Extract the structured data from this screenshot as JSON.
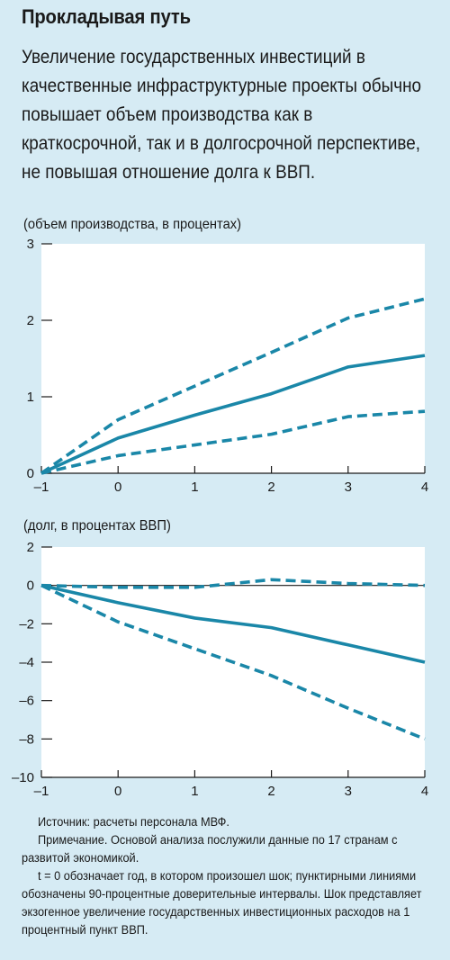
{
  "header": {
    "title": "Прокладывая путь",
    "subtitle": "Увеличение государственных инвестиций в качественные инфраструктурные проекты обычно повышает объем производства как в краткосрочной, так и в долгосрочной перспективе, не повышая отношение долга к ВВП."
  },
  "colors": {
    "background": "#d6ebf4",
    "plot_bg": "#ffffff",
    "series": "#1a87a8",
    "axis": "#1a1a1a"
  },
  "chart_data": [
    {
      "type": "line",
      "title": "",
      "ylabel": "(объем производства, в процентах)",
      "xlabel": "",
      "x": [
        -1,
        0,
        1,
        2,
        3,
        4
      ],
      "xticks": [
        "–1",
        "0",
        "1",
        "2",
        "3",
        "4"
      ],
      "yticks": [
        0,
        1,
        2,
        3
      ],
      "ylim": [
        0,
        3
      ],
      "xlim": [
        -1,
        4
      ],
      "series": [
        {
          "style": "solid",
          "values": [
            0,
            0.46,
            0.76,
            1.04,
            1.39,
            1.54
          ]
        },
        {
          "style": "dashed",
          "values": [
            0,
            0.7,
            1.14,
            1.58,
            2.03,
            2.28
          ]
        },
        {
          "style": "dashed",
          "values": [
            0,
            0.23,
            0.37,
            0.51,
            0.74,
            0.81
          ]
        }
      ]
    },
    {
      "type": "line",
      "title": "",
      "ylabel": "(долг,  в процентах ВВП)",
      "xlabel": "",
      "x": [
        -1,
        0,
        1,
        2,
        3,
        4
      ],
      "xticks": [
        "–1",
        "0",
        "1",
        "2",
        "3",
        "4"
      ],
      "yticks": [
        2,
        0,
        -2,
        -4,
        -6,
        -8,
        -10
      ],
      "ytick_labels": [
        "2",
        "0",
        "–2",
        "–4",
        "–6",
        "–8",
        "–10"
      ],
      "ylim": [
        -10,
        2
      ],
      "xlim": [
        -1,
        4
      ],
      "zero_line": true,
      "series": [
        {
          "style": "solid",
          "values": [
            0,
            -0.9,
            -1.7,
            -2.2,
            -3.1,
            -4.0
          ]
        },
        {
          "style": "dashed",
          "values": [
            0,
            -1.9,
            -3.3,
            -4.7,
            -6.4,
            -8.0
          ]
        },
        {
          "style": "dashed",
          "values": [
            0,
            -0.1,
            -0.1,
            0.3,
            0.1,
            0.0
          ]
        }
      ]
    }
  ],
  "notes": {
    "source": "Источник: расчеты персонала МВФ.",
    "note1": "Примечание. Основой анализа послужили данные по 17 странам с развитой экономикой.",
    "note2": "t = 0 обозначает год, в котором произошел шок; пунктирными линиями обозначены 90-процентные доверительные интервалы. Шок представляет экзогенное увеличение государственных инвестиционных расходов на 1 процентный пункт ВВП."
  }
}
